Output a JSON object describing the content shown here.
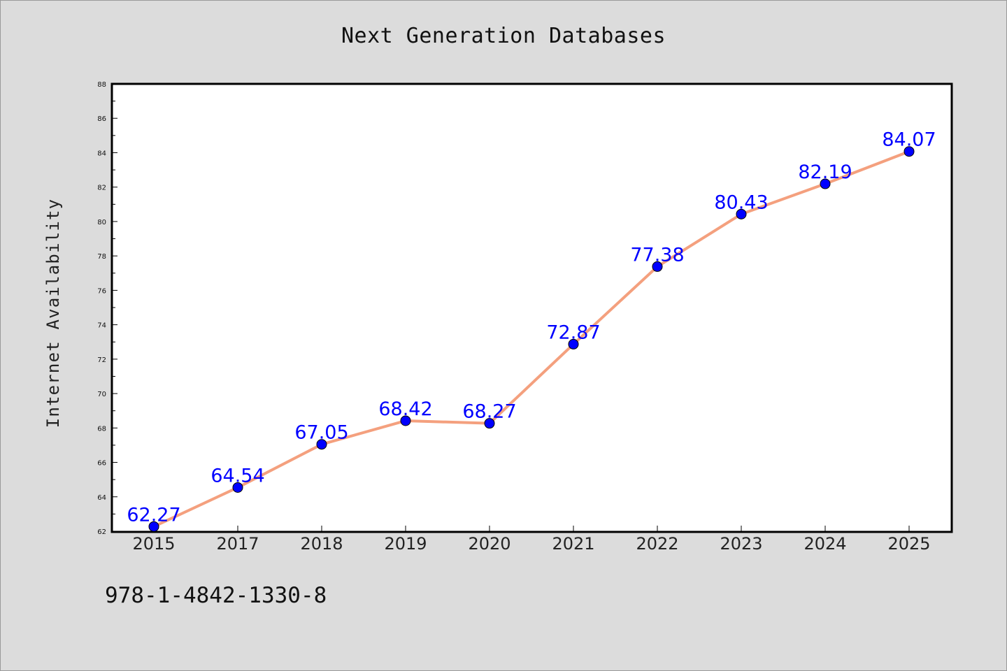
{
  "chart_data": {
    "type": "line",
    "title": "Next Generation Databases",
    "xlabel": "",
    "ylabel": "Internet Availability",
    "categories": [
      "2015",
      "2017",
      "2018",
      "2019",
      "2020",
      "2021",
      "2022",
      "2023",
      "2024",
      "2025"
    ],
    "series": [
      {
        "values": [
          62.27,
          64.54,
          67.05,
          68.42,
          68.27,
          72.87,
          77.38,
          80.43,
          82.19,
          84.07
        ],
        "labels": [
          "62.27",
          "64.54",
          "67.05",
          "68.42",
          "68.27",
          "72.87",
          "77.38",
          "80.43",
          "82.19",
          "84.07"
        ],
        "line_color": "#f4a07e",
        "marker_color": "#0000ff"
      }
    ],
    "ylim": [
      62,
      88
    ],
    "yticks": [
      "62",
      "64",
      "66",
      "68",
      "70",
      "72",
      "74",
      "76",
      "78",
      "80",
      "82",
      "84",
      "86",
      "88"
    ],
    "grid": false,
    "legend": "none"
  },
  "annotation": "978-1-4842-1330-8",
  "colors": {
    "background": "#dcdcdc",
    "plot_background": "#ffffff",
    "line": "#f4a07e",
    "marker": "#0000ff",
    "data_label": "#0000ff"
  }
}
